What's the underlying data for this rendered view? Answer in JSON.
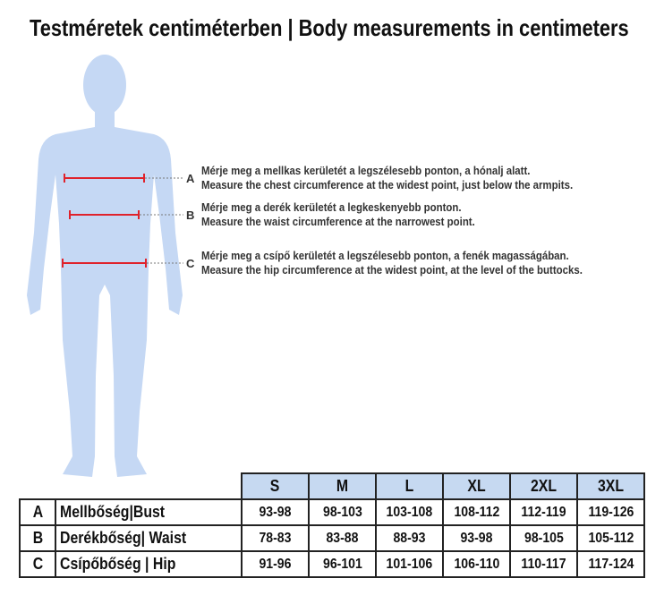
{
  "title": "Testméretek centiméterben | Body measurements in centimeters",
  "colors": {
    "silhouette": "#c5d8f4",
    "header_fill": "#c6d9f1",
    "measure_line": "#e0222b"
  },
  "instructions": [
    {
      "letter": "A",
      "hu": "Mérje meg a mellkas kerületét a legszélesebb ponton, a hónalj alatt.",
      "en": "Measure the chest circumference at the widest point, just below the armpits."
    },
    {
      "letter": "B",
      "hu": "Mérje meg a derék kerületét a legkeskenyebb ponton.",
      "en": "Measure the waist circumference at the narrowest point."
    },
    {
      "letter": "C",
      "hu": "Mérje meg a csípő kerületét a legszélesebb ponton, a fenék magasságában.",
      "en": "Measure the hip circumference at the widest point, at the level of the buttocks."
    }
  ],
  "table": {
    "sizes": [
      "S",
      "M",
      "L",
      "XL",
      "2XL",
      "3XL"
    ],
    "rows": [
      {
        "letter": "A",
        "name": "Mellbőség|Bust",
        "values": [
          "93-98",
          "98-103",
          "103-108",
          "108-112",
          "112-119",
          "119-126"
        ]
      },
      {
        "letter": "B",
        "name": "Derékbőség| Waist",
        "values": [
          "78-83",
          "83-88",
          "88-93",
          "93-98",
          "98-105",
          "105-112"
        ]
      },
      {
        "letter": "C",
        "name": "Csípőbőség | Hip",
        "values": [
          "91-96",
          "96-101",
          "101-106",
          "106-110",
          "110-117",
          "117-124"
        ]
      }
    ]
  }
}
